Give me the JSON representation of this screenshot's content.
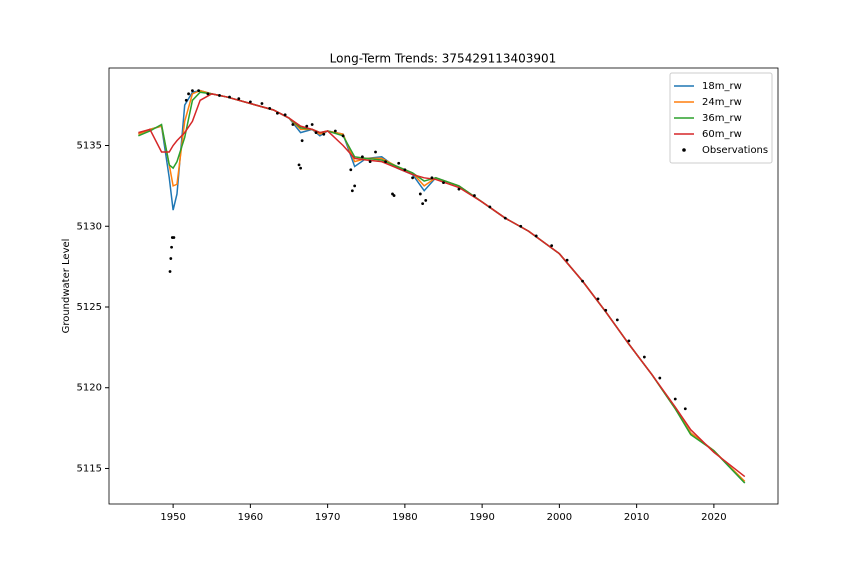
{
  "chart_data": {
    "type": "line",
    "title": "Long-Term Trends: 375429113403901",
    "y_label": "Groundwater Level",
    "x": [
      1945.5,
      1947,
      1948.5,
      1949.5,
      1950,
      1950.5,
      1951.5,
      1952.5,
      1953.5,
      1955,
      1957,
      1960,
      1963,
      1965,
      1966.5,
      1968,
      1969,
      1970,
      1972,
      1973.5,
      1975,
      1977,
      1979,
      1981,
      1982.5,
      1984,
      1987,
      1990,
      1993,
      1996,
      2000,
      2003,
      2006,
      2009,
      2012,
      2015,
      2017,
      2020,
      2024
    ],
    "series": [
      {
        "name": "18m_rw",
        "color": "#1f77b4",
        "values": [
          5135.7,
          5136.0,
          5136.2,
          5133.0,
          5131.0,
          5132.0,
          5137.5,
          5138.3,
          5138.4,
          5138.2,
          5138.0,
          5137.6,
          5137.2,
          5136.7,
          5135.8,
          5136.0,
          5135.6,
          5135.9,
          5135.7,
          5133.7,
          5134.2,
          5134.3,
          5133.6,
          5133.2,
          5132.2,
          5133.0,
          5132.5,
          5131.5,
          5130.5,
          5129.7,
          5128.3,
          5126.6,
          5124.7,
          5122.7,
          5120.8,
          5118.7,
          5117.2,
          5116.1,
          5114.1
        ]
      },
      {
        "name": "24m_rw",
        "color": "#ff7f0e",
        "values": [
          5135.7,
          5136.0,
          5136.2,
          5133.8,
          5132.5,
          5132.6,
          5136.5,
          5138.2,
          5138.4,
          5138.2,
          5138.0,
          5137.6,
          5137.2,
          5136.7,
          5136.0,
          5136.0,
          5135.7,
          5135.9,
          5135.7,
          5134.0,
          5134.2,
          5134.2,
          5133.7,
          5133.3,
          5132.5,
          5133.0,
          5132.5,
          5131.5,
          5130.5,
          5129.7,
          5128.3,
          5126.6,
          5124.7,
          5122.7,
          5120.8,
          5118.7,
          5117.2,
          5116.1,
          5114.2
        ]
      },
      {
        "name": "36m_rw",
        "color": "#2ca02c",
        "values": [
          5135.6,
          5135.9,
          5136.3,
          5133.8,
          5133.6,
          5134.0,
          5135.5,
          5137.8,
          5138.3,
          5138.2,
          5138.0,
          5137.6,
          5137.2,
          5136.7,
          5136.1,
          5136.0,
          5135.8,
          5135.9,
          5135.6,
          5134.3,
          5134.2,
          5134.1,
          5133.7,
          5133.3,
          5132.8,
          5133.0,
          5132.5,
          5131.5,
          5130.5,
          5129.7,
          5128.3,
          5126.6,
          5124.7,
          5122.7,
          5120.8,
          5118.7,
          5117.1,
          5116.1,
          5114.1
        ]
      },
      {
        "name": "60m_rw",
        "color": "#d62728",
        "values": [
          5135.8,
          5136.0,
          5134.6,
          5134.6,
          5135.0,
          5135.3,
          5135.8,
          5136.5,
          5137.8,
          5138.2,
          5138.0,
          5137.6,
          5137.2,
          5136.7,
          5136.2,
          5136.0,
          5135.8,
          5135.9,
          5135.0,
          5134.2,
          5134.1,
          5134.0,
          5133.6,
          5133.2,
          5133.0,
          5132.9,
          5132.4,
          5131.5,
          5130.5,
          5129.7,
          5128.3,
          5126.6,
          5124.7,
          5122.7,
          5120.8,
          5118.8,
          5117.4,
          5116.0,
          5114.5
        ]
      },
      {
        "name": "Observations",
        "type": "scatter",
        "color": "#000000",
        "x": [
          1949.6,
          1949.7,
          1949.8,
          1949.9,
          1950.1,
          1951.7,
          1952.0,
          1952.5,
          1953.3,
          1954.5,
          1956.0,
          1957.3,
          1958.5,
          1960.0,
          1961.5,
          1962.5,
          1963.5,
          1964.5,
          1965.5,
          1966.3,
          1966.5,
          1966.7,
          1967.3,
          1968.0,
          1968.5,
          1969.5,
          1971.0,
          1972.0,
          1973.0,
          1973.2,
          1973.5,
          1974.5,
          1975.5,
          1976.2,
          1977.5,
          1978.4,
          1978.6,
          1979.2,
          1980.0,
          1981.0,
          1982.0,
          1982.3,
          1982.7,
          1983.5,
          1985.0,
          1987.0,
          1989.0,
          1991.0,
          1993.0,
          1995.0,
          1997.0,
          1999.0,
          2001.0,
          2003.0,
          2005.0,
          2006.0,
          2007.5,
          2009.0,
          2011.0,
          2013.0,
          2015.0,
          2016.3
        ],
        "values": [
          5127.2,
          5128.0,
          5128.7,
          5129.3,
          5129.3,
          5137.8,
          5138.2,
          5138.4,
          5138.4,
          5138.2,
          5138.1,
          5138.0,
          5137.9,
          5137.7,
          5137.6,
          5137.3,
          5137.0,
          5136.9,
          5136.3,
          5133.8,
          5133.6,
          5135.3,
          5136.2,
          5136.3,
          5135.8,
          5135.7,
          5135.9,
          5135.6,
          5133.5,
          5132.2,
          5132.5,
          5134.3,
          5134.0,
          5134.6,
          5134.0,
          5132.0,
          5131.9,
          5133.9,
          5133.5,
          5133.0,
          5132.0,
          5131.4,
          5131.6,
          5133.0,
          5132.7,
          5132.3,
          5131.9,
          5131.2,
          5130.5,
          5130.0,
          5129.4,
          5128.8,
          5127.9,
          5126.6,
          5125.5,
          5124.8,
          5124.2,
          5122.9,
          5121.9,
          5120.6,
          5119.3,
          5118.7
        ]
      }
    ],
    "xlim": [
      1941.7,
      2028.3
    ],
    "ylim": [
      5112.8,
      5139.8
    ],
    "xticks": [
      1950,
      1960,
      1970,
      1980,
      1990,
      2000,
      2010,
      2020
    ],
    "yticks": [
      5115,
      5120,
      5125,
      5130,
      5135
    ],
    "legend": "upper right"
  }
}
